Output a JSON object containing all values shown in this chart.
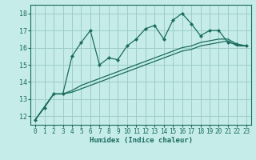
{
  "xlabel": "Humidex (Indice chaleur)",
  "bg_color": "#c5ece8",
  "grid_color": "#9ecdc8",
  "line_color": "#1a6b60",
  "xlim": [
    -0.5,
    23.5
  ],
  "ylim": [
    11.5,
    18.5
  ],
  "xticks": [
    0,
    1,
    2,
    3,
    4,
    5,
    6,
    7,
    8,
    9,
    10,
    11,
    12,
    13,
    14,
    15,
    16,
    17,
    18,
    19,
    20,
    21,
    22,
    23
  ],
  "yticks": [
    12,
    13,
    14,
    15,
    16,
    17,
    18
  ],
  "main_x": [
    0,
    1,
    2,
    3,
    4,
    5,
    6,
    7,
    8,
    9,
    10,
    11,
    12,
    13,
    14,
    15,
    16,
    17,
    18,
    19,
    20,
    21,
    22,
    23
  ],
  "main_y": [
    11.8,
    12.5,
    13.3,
    13.3,
    15.5,
    16.3,
    17.0,
    15.0,
    15.4,
    15.3,
    16.1,
    16.5,
    17.1,
    17.3,
    16.5,
    17.6,
    18.0,
    17.4,
    16.7,
    17.0,
    17.0,
    16.3,
    16.2,
    16.1
  ],
  "line2_x": [
    0,
    2,
    3,
    4,
    5,
    6,
    7,
    8,
    9,
    10,
    11,
    12,
    13,
    14,
    15,
    16,
    17,
    18,
    19,
    20,
    21,
    22,
    23
  ],
  "line2_y": [
    11.8,
    13.3,
    13.3,
    13.5,
    13.8,
    14.0,
    14.2,
    14.4,
    14.6,
    14.8,
    15.0,
    15.2,
    15.4,
    15.6,
    15.8,
    16.0,
    16.1,
    16.3,
    16.4,
    16.5,
    16.5,
    16.2,
    16.1
  ],
  "line3_x": [
    0,
    2,
    3,
    4,
    5,
    6,
    7,
    8,
    9,
    10,
    11,
    12,
    13,
    14,
    15,
    16,
    17,
    18,
    19,
    20,
    21,
    22,
    23
  ],
  "line3_y": [
    11.8,
    13.3,
    13.3,
    13.4,
    13.6,
    13.8,
    14.0,
    14.2,
    14.4,
    14.6,
    14.8,
    15.0,
    15.2,
    15.4,
    15.6,
    15.8,
    15.9,
    16.1,
    16.2,
    16.3,
    16.4,
    16.1,
    16.1
  ]
}
